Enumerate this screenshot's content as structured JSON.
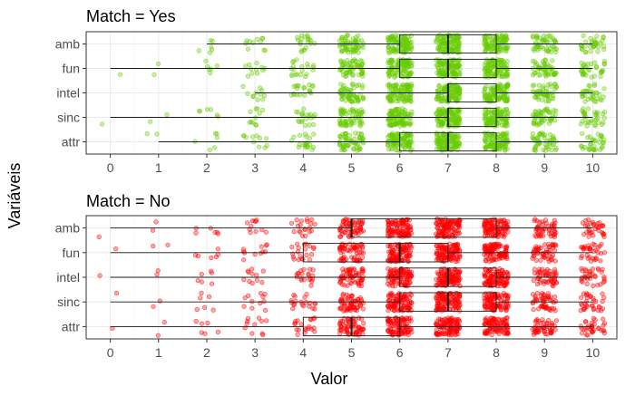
{
  "ylabel": "Variáveis",
  "xlabel": "Valor",
  "chart_data": [
    {
      "type": "box+jitter",
      "title": "Match = Yes",
      "color": "#66cc00",
      "categories": [
        "amb",
        "fun",
        "intel",
        "sinc",
        "attr"
      ],
      "x_ticks": [
        "0",
        "1",
        "2",
        "3",
        "4",
        "5",
        "6",
        "7",
        "8",
        "9",
        "10"
      ],
      "xlim": [
        -0.5,
        10.5
      ],
      "boxes": [
        {
          "category": "amb",
          "min": 2,
          "q1": 6,
          "median": 7,
          "q3": 8,
          "max": 10
        },
        {
          "category": "fun",
          "min": 0,
          "q1": 6,
          "median": 7,
          "q3": 8,
          "max": 10
        },
        {
          "category": "intel",
          "min": 3,
          "q1": 7,
          "median": 7,
          "q3": 8,
          "max": 10
        },
        {
          "category": "sinc",
          "min": 0,
          "q1": 7,
          "median": 7,
          "q3": 8,
          "max": 10
        },
        {
          "category": "attr",
          "min": 1,
          "q1": 6,
          "median": 7,
          "q3": 8,
          "max": 10
        }
      ]
    },
    {
      "type": "box+jitter",
      "title": "Match = No",
      "color": "#ff0000",
      "categories": [
        "amb",
        "fun",
        "intel",
        "sinc",
        "attr"
      ],
      "x_ticks": [
        "0",
        "1",
        "2",
        "3",
        "4",
        "5",
        "6",
        "7",
        "8",
        "9",
        "10"
      ],
      "xlim": [
        -0.5,
        10.5
      ],
      "boxes": [
        {
          "category": "amb",
          "min": 0,
          "q1": 5,
          "median": 5,
          "q3": 8,
          "max": 10
        },
        {
          "category": "fun",
          "min": 0,
          "q1": 4,
          "median": 6,
          "q3": 7,
          "max": 10
        },
        {
          "category": "intel",
          "min": 0,
          "q1": 6,
          "median": 7,
          "q3": 8,
          "max": 10
        },
        {
          "category": "sinc",
          "min": 0,
          "q1": 6,
          "median": 7,
          "q3": 8,
          "max": 10
        },
        {
          "category": "attr",
          "min": 0,
          "q1": 4,
          "median": 5,
          "q3": 6,
          "max": 10
        }
      ]
    }
  ]
}
